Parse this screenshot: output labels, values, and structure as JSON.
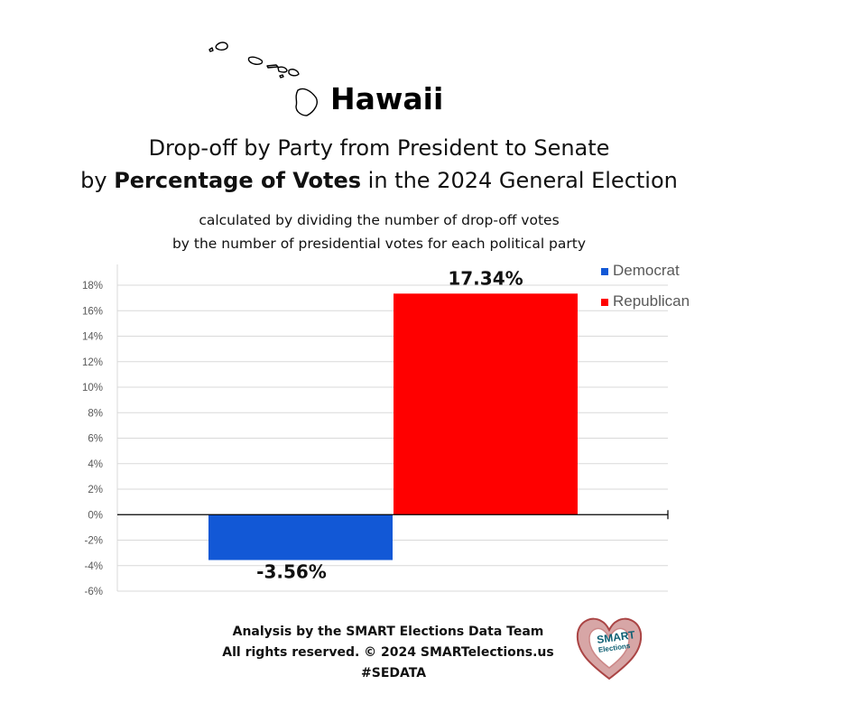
{
  "state": "Hawaii",
  "title": {
    "line1": "Drop-off by Party from President to Senate",
    "line2_prefix": "by ",
    "line2_bold": "Percentage of Votes",
    "line2_suffix": " in the 2024 General Election"
  },
  "subtitle": {
    "line1": "calculated by dividing the number of drop-off votes",
    "line2": "by the number of presidential votes for each political party"
  },
  "footer": {
    "line1": "Analysis by the SMART Elections Data Team",
    "line2": "All rights reserved. © 2024 SMARTelections.us",
    "line3": "#SEDATA"
  },
  "logo": {
    "text": "SMART",
    "sub": "Elections"
  },
  "colors": {
    "democrat": "#1258d6",
    "republican": "#ff0000",
    "grid": "#d9d9d9",
    "axis_text": "#595959"
  },
  "chart_data": {
    "type": "bar",
    "title": "Drop-off by Party from President to Senate by Percentage of Votes in the 2024 General Election",
    "categories": [
      "Democrat",
      "Republican"
    ],
    "values": [
      -3.56,
      17.34
    ],
    "data_labels": [
      "-3.56%",
      "17.34%"
    ],
    "series": [
      {
        "name": "Democrat",
        "value": -3.56,
        "color": "#1258d6"
      },
      {
        "name": "Republican",
        "value": 17.34,
        "color": "#ff0000"
      }
    ],
    "ylim": [
      -6,
      18
    ],
    "yticks": [
      -6,
      -4,
      -2,
      0,
      2,
      4,
      6,
      8,
      10,
      12,
      14,
      16,
      18
    ],
    "ytick_labels": [
      "-6%",
      "-4%",
      "-2%",
      "0%",
      "2%",
      "4%",
      "6%",
      "8%",
      "10%",
      "12%",
      "14%",
      "16%",
      "18%"
    ],
    "grid": true,
    "legend": "top-right",
    "xlabel": "",
    "ylabel": ""
  }
}
